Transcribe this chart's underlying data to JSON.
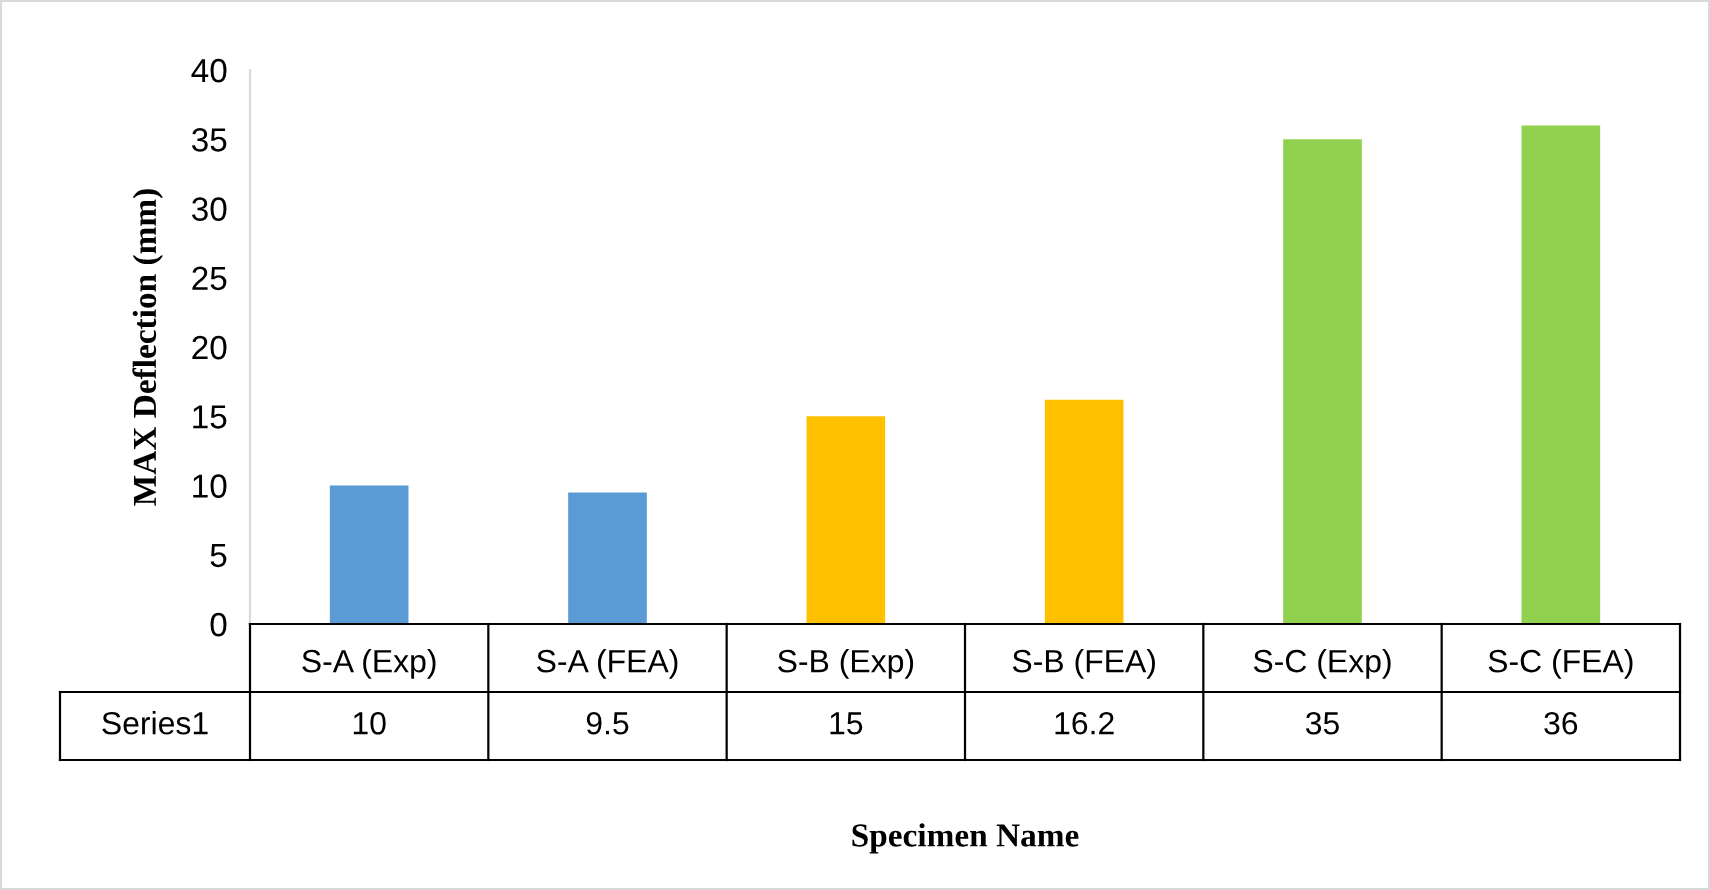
{
  "chart_data": {
    "type": "bar",
    "xlabel": "Specimen Name",
    "ylabel": "MAX Deflection (mm)",
    "categories": [
      "S-A (Exp)",
      "S-A (FEA)",
      "S-B (Exp)",
      "S-B (FEA)",
      "S-C (Exp)",
      "S-C (FEA)"
    ],
    "series": [
      {
        "name": "Series1",
        "values": [
          10,
          9.5,
          15,
          16.2,
          35,
          36
        ],
        "colors": [
          "#5b9bd5",
          "#5b9bd5",
          "#ffc000",
          "#ffc000",
          "#92d050",
          "#92d050"
        ]
      }
    ],
    "ylim": [
      0,
      40
    ],
    "yticks": [
      0,
      5,
      10,
      15,
      20,
      25,
      30,
      35,
      40
    ],
    "grid": false,
    "legend": false,
    "data_labels": true
  }
}
